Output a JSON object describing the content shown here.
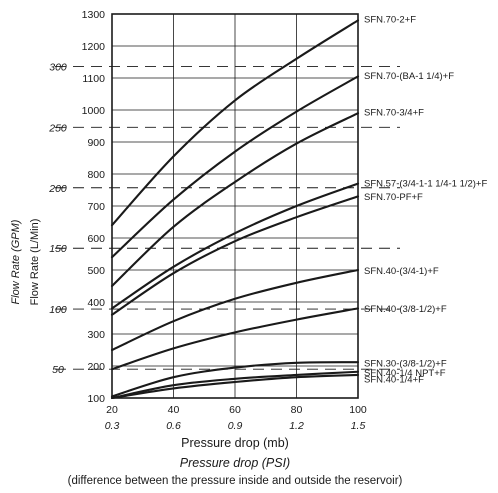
{
  "chart_data": {
    "type": "line",
    "xlabel": "Pressure drop (mb)",
    "xlabel_secondary": "Pressure drop (PSI)",
    "note": "(difference between the pressure inside and outside the reservoir)",
    "ylabel": "Flow Rate (L/Min)",
    "ylabel_secondary": "Flow Rate (GPM)",
    "xlim": [
      20,
      100
    ],
    "ylim": [
      100,
      1300
    ],
    "x_ticks": [
      "20",
      "40",
      "60",
      "80",
      "100"
    ],
    "x_ticks_secondary": [
      "0.3",
      "0.6",
      "0.9",
      "1.2",
      "1.5"
    ],
    "y_ticks": [
      "100",
      "200",
      "300",
      "400",
      "500",
      "600",
      "700",
      "800",
      "900",
      "1000",
      "1100",
      "1200",
      "1300"
    ],
    "gpm_ticks": [
      {
        "label": "50",
        "value": 190
      },
      {
        "label": "100",
        "value": 378
      },
      {
        "label": "150",
        "value": 568
      },
      {
        "label": "200",
        "value": 757
      },
      {
        "label": "250",
        "value": 946
      },
      {
        "label": "300",
        "value": 1136
      }
    ],
    "grid": true,
    "series": [
      {
        "name": "SFN.70-2+F",
        "x": [
          20,
          40,
          60,
          80,
          100
        ],
        "y": [
          640,
          855,
          1030,
          1160,
          1280
        ]
      },
      {
        "name": "SFN.70-(BA-1 1/4)+F",
        "x": [
          20,
          40,
          60,
          80,
          100
        ],
        "y": [
          540,
          720,
          870,
          995,
          1105
        ]
      },
      {
        "name": "SFN.70-3/4+F",
        "x": [
          20,
          40,
          60,
          80,
          100
        ],
        "y": [
          450,
          635,
          775,
          895,
          990
        ]
      },
      {
        "name": "SFN.57-(3/4-1-1 1/4-1 1/2)+F",
        "x": [
          20,
          40,
          60,
          80,
          100
        ],
        "y": [
          380,
          510,
          615,
          700,
          770
        ]
      },
      {
        "name": "SFN.70-PF+F",
        "x": [
          20,
          40,
          60,
          80,
          100
        ],
        "y": [
          360,
          490,
          590,
          665,
          730
        ]
      },
      {
        "name": "SFN.40-(3/4-1)+F",
        "x": [
          20,
          40,
          60,
          80,
          100
        ],
        "y": [
          250,
          340,
          410,
          460,
          500
        ]
      },
      {
        "name": "SFN.40-(3/8-1/2)+F",
        "x": [
          20,
          40,
          60,
          80,
          100
        ],
        "y": [
          190,
          255,
          305,
          345,
          380
        ]
      },
      {
        "name": "SFN.30-(3/8-1/2)+F",
        "x": [
          20,
          40,
          60,
          80,
          100
        ],
        "y": [
          105,
          165,
          195,
          210,
          212
        ]
      },
      {
        "name": "SFN.40-1/4 NPT+F",
        "x": [
          20,
          40,
          60,
          80,
          100
        ],
        "y": [
          100,
          140,
          160,
          172,
          182
        ]
      },
      {
        "name": "SFN.40-1/4+F",
        "x": [
          20,
          40,
          60,
          80,
          100
        ],
        "y": [
          100,
          130,
          150,
          165,
          172
        ]
      }
    ],
    "label_values": [
      1285,
      1108,
      993,
      772,
      730,
      498,
      380,
      210,
      180,
      160
    ]
  }
}
